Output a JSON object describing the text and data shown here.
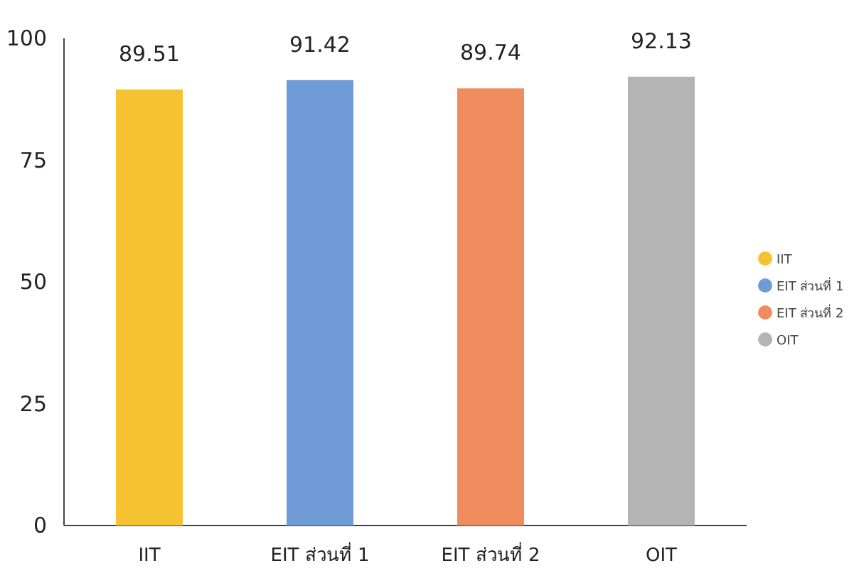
{
  "chart_data": {
    "type": "bar",
    "categories": [
      "IIT",
      "EIT ส่วนที่ 1",
      "EIT ส่วนที่ 2",
      "OIT"
    ],
    "series": [
      {
        "name": "IIT",
        "color": "#f5c232",
        "values": [
          89.51,
          null,
          null,
          null
        ]
      },
      {
        "name": "EIT ส่วนที่ 1",
        "color": "#6f9bd6",
        "values": [
          null,
          91.42,
          null,
          null
        ]
      },
      {
        "name": "EIT ส่วนที่ 2",
        "color": "#f08c5e",
        "values": [
          null,
          null,
          89.74,
          null
        ]
      },
      {
        "name": "OIT",
        "color": "#b4b4b4",
        "values": [
          null,
          null,
          null,
          92.13
        ]
      }
    ],
    "ylim": [
      0,
      100
    ],
    "yticks": [
      0,
      25,
      50,
      75,
      100
    ],
    "data_labels": true,
    "legend": "right"
  }
}
